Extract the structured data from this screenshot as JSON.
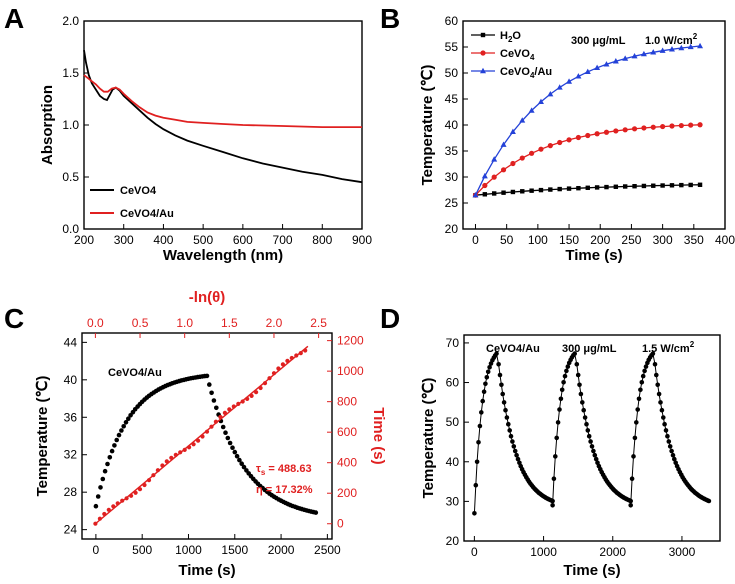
{
  "colors": {
    "black": "#000000",
    "red": "#e02020",
    "blue": "#2442d8"
  },
  "chart_data": [
    {
      "panel": "A",
      "type": "line",
      "xlabel": "Wavelength (nm)",
      "ylabel": "Absorption",
      "xlim": [
        200,
        900
      ],
      "ylim": [
        0.0,
        2.0
      ],
      "xticks": [
        200,
        300,
        400,
        500,
        600,
        700,
        800,
        900
      ],
      "yticks": [
        0.0,
        0.5,
        1.0,
        1.5,
        2.0
      ],
      "legend": {
        "position": "bottom-left"
      },
      "series": [
        {
          "name": "CeVO4",
          "sub": "4",
          "color": "#000000",
          "x": [
            200,
            205,
            212,
            220,
            230,
            240,
            250,
            258,
            265,
            272,
            280,
            290,
            300,
            320,
            340,
            360,
            380,
            400,
            430,
            460,
            500,
            550,
            600,
            650,
            700,
            750,
            800,
            850,
            900
          ],
          "y": [
            1.72,
            1.6,
            1.48,
            1.4,
            1.34,
            1.28,
            1.25,
            1.24,
            1.29,
            1.34,
            1.36,
            1.33,
            1.28,
            1.21,
            1.14,
            1.07,
            1.01,
            0.96,
            0.9,
            0.85,
            0.8,
            0.74,
            0.68,
            0.63,
            0.59,
            0.55,
            0.52,
            0.48,
            0.45
          ]
        },
        {
          "name": "CeVO4/Au",
          "sub": "4",
          "suffix": "/Au",
          "color": "#e02020",
          "x": [
            200,
            210,
            220,
            230,
            240,
            250,
            260,
            270,
            280,
            290,
            300,
            320,
            340,
            360,
            380,
            400,
            430,
            460,
            500,
            550,
            600,
            700,
            800,
            900
          ],
          "y": [
            1.48,
            1.45,
            1.42,
            1.39,
            1.35,
            1.32,
            1.32,
            1.35,
            1.36,
            1.34,
            1.3,
            1.23,
            1.17,
            1.12,
            1.09,
            1.07,
            1.05,
            1.03,
            1.02,
            1.01,
            1.0,
            0.99,
            0.98,
            0.98
          ]
        }
      ]
    },
    {
      "panel": "B",
      "type": "line",
      "xlabel": "Time (s)",
      "ylabel": "Temperature (℃)",
      "xlim": [
        -20,
        400
      ],
      "ylim": [
        20,
        60
      ],
      "xticks": [
        0,
        50,
        100,
        150,
        200,
        250,
        300,
        350,
        400
      ],
      "yticks": [
        20,
        25,
        30,
        35,
        40,
        45,
        50,
        55,
        60
      ],
      "annotations": [
        "300 μg/mL",
        "1.0 W/cm",
        "2"
      ],
      "legend": {
        "position": "top-left"
      },
      "series": [
        {
          "name": "H2O",
          "label": "H",
          "sub": "2",
          "suffix": "O",
          "color": "#000000",
          "marker": "square",
          "T0": 26.5,
          "Tmax": 28.9,
          "tau": 200
        },
        {
          "name": "CeVO4",
          "label": "CeVO",
          "sub": "4",
          "suffix": "",
          "color": "#e02020",
          "marker": "circle",
          "T0": 26.5,
          "Tmax": 40.5,
          "tau": 105
        },
        {
          "name": "CeVO4/Au",
          "label": "CeVO",
          "sub": "4",
          "suffix": "/Au",
          "color": "#2442d8",
          "marker": "triangle",
          "T0": 26.5,
          "Tmax": 56.5,
          "tau": 115
        }
      ],
      "time_points": [
        0,
        15,
        30,
        45,
        60,
        75,
        90,
        105,
        120,
        135,
        150,
        165,
        180,
        195,
        210,
        225,
        240,
        255,
        270,
        285,
        300,
        315,
        330,
        345,
        360
      ]
    },
    {
      "panel": "C",
      "type": "scatter",
      "xlabel": "Time (s)",
      "ylabel": "Temperature (℃)",
      "top_xlabel": "-ln(θ)",
      "right_ylabel": "Time (s)",
      "xlim": [
        -150,
        2550
      ],
      "ylim": [
        23,
        45
      ],
      "xticks": [
        0,
        500,
        1000,
        1500,
        2000,
        2500
      ],
      "yticks": [
        24,
        28,
        32,
        36,
        40,
        44
      ],
      "top_xlim": [
        -0.15,
        2.65
      ],
      "top_xticks": [
        0.0,
        0.5,
        1.0,
        1.5,
        2.0,
        2.5
      ],
      "right_ylim": [
        -100,
        1250
      ],
      "right_yticks": [
        0,
        200,
        400,
        600,
        800,
        1000,
        1200
      ],
      "sample_label": "CeVO4/Au",
      "tau_label": "τ",
      "tau_sub": "s",
      "tau_value": " = 488.63",
      "eta_label": "η = 17.32%",
      "heating": {
        "T0": 26.5,
        "Tmax": 40.8,
        "tau": 330,
        "t_end": 1200
      },
      "cooling": {
        "T_end": 25.0,
        "tau": 400,
        "t_end": 2380
      },
      "linear_fit": {
        "slope": 488.63,
        "intercept": 0,
        "x_range": [
          0.0,
          2.38
        ]
      }
    },
    {
      "panel": "D",
      "type": "line",
      "xlabel": "Time (s)",
      "ylabel": "Temperature (℃)",
      "xlim": [
        -150,
        3550
      ],
      "ylim": [
        20,
        72
      ],
      "xticks": [
        0,
        1000,
        2000,
        3000
      ],
      "yticks": [
        20,
        30,
        40,
        50,
        60,
        70
      ],
      "annotations": [
        "CeVO4/Au",
        "300 μg/mL",
        "1.5 W/cm",
        "2"
      ],
      "cycles": [
        {
          "t_on": 0,
          "t_off": 330,
          "t_end": 1130,
          "T_start": 27.0
        },
        {
          "t_on": 1130,
          "t_off": 1460,
          "t_end": 2260,
          "T_start": 29.0
        },
        {
          "t_on": 2260,
          "t_off": 2590,
          "t_end": 3390,
          "T_start": 29.0
        }
      ],
      "Tmax": 67.5,
      "T_base": 28.3
    }
  ],
  "panel_labels": [
    "A",
    "B",
    "C",
    "D"
  ]
}
